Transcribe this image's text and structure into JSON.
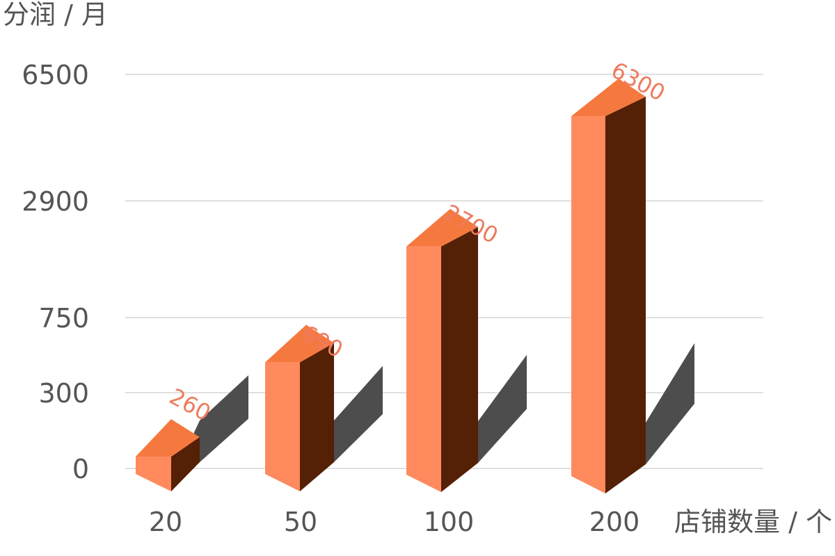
{
  "chart_data": {
    "type": "bar",
    "ylabel": "分润 / 月",
    "xlabel": "店铺数量 / 个",
    "categories": [
      "20",
      "50",
      "100",
      "200"
    ],
    "values": [
      260,
      690,
      2700,
      6300
    ],
    "y_ticks": [
      0,
      300,
      750,
      2900,
      6500
    ],
    "data_labels": [
      "260",
      "690",
      "2700",
      "6300"
    ],
    "grid": true,
    "colors": {
      "front": "#ff8a5e",
      "top": "#f5793f",
      "side": "#542006",
      "shadow": "#4d4d4d",
      "label": "#ee7b5f",
      "grid": "#d5d5d5",
      "text": "#555555"
    }
  }
}
